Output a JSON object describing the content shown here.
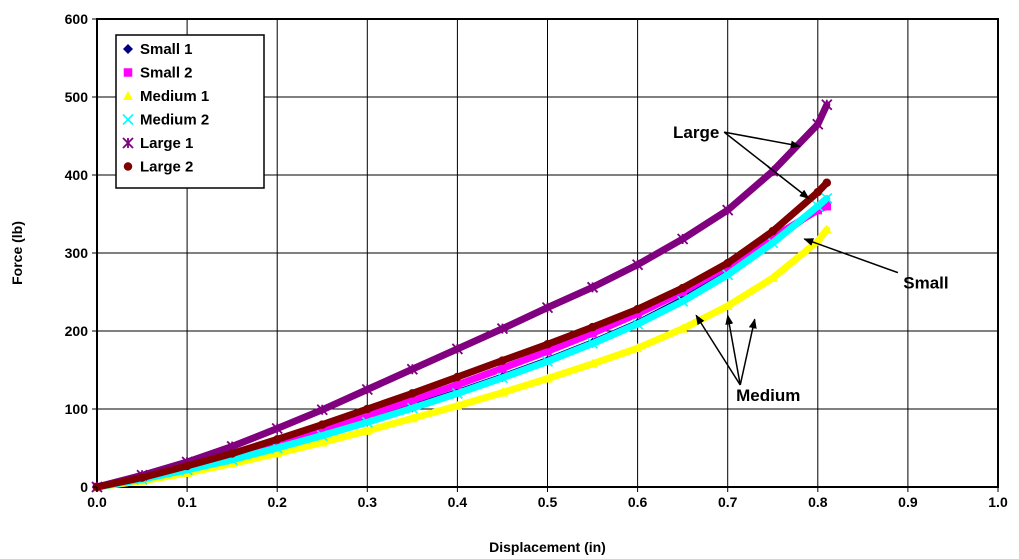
{
  "chart_data": {
    "type": "scatter",
    "xlabel": "Displacement (in)",
    "ylabel": "Force (lb)",
    "xlim": [
      0.0,
      1.0
    ],
    "ylim": [
      0,
      600
    ],
    "x_ticks": [
      "0.0",
      "0.1",
      "0.2",
      "0.3",
      "0.4",
      "0.5",
      "0.6",
      "0.7",
      "0.8",
      "0.9",
      "1.0"
    ],
    "y_ticks": [
      "0",
      "100",
      "200",
      "300",
      "400",
      "500",
      "600"
    ],
    "grid": true,
    "legend_position": "top-left",
    "series": [
      {
        "name": "Small 1",
        "color": "#000080",
        "marker": "diamond",
        "x": [
          0.0,
          0.05,
          0.1,
          0.15,
          0.2,
          0.25,
          0.3,
          0.35,
          0.4,
          0.45,
          0.5,
          0.55,
          0.6,
          0.65,
          0.7,
          0.75,
          0.8,
          0.81
        ],
        "y": [
          0,
          10,
          22,
          36,
          51,
          67,
          84,
          102,
          121,
          141,
          162,
          185,
          210,
          240,
          275,
          315,
          358,
          365
        ]
      },
      {
        "name": "Small 2",
        "color": "#ff00ff",
        "marker": "square",
        "x": [
          0.0,
          0.05,
          0.1,
          0.15,
          0.2,
          0.25,
          0.3,
          0.35,
          0.4,
          0.45,
          0.5,
          0.55,
          0.6,
          0.65,
          0.7,
          0.75,
          0.8,
          0.81
        ],
        "y": [
          0,
          12,
          26,
          41,
          57,
          74,
          92,
          111,
          131,
          152,
          174,
          197,
          222,
          250,
          283,
          320,
          355,
          360
        ]
      },
      {
        "name": "Medium 1",
        "color": "#ffff00",
        "marker": "triangle",
        "x": [
          0.0,
          0.05,
          0.1,
          0.15,
          0.2,
          0.25,
          0.3,
          0.35,
          0.4,
          0.45,
          0.5,
          0.55,
          0.6,
          0.65,
          0.7,
          0.75,
          0.8,
          0.81
        ],
        "y": [
          0,
          8,
          18,
          30,
          43,
          57,
          72,
          88,
          104,
          121,
          139,
          158,
          178,
          203,
          232,
          268,
          315,
          330
        ]
      },
      {
        "name": "Medium 2",
        "color": "#00ffff",
        "marker": "x",
        "x": [
          0.0,
          0.05,
          0.1,
          0.15,
          0.2,
          0.25,
          0.3,
          0.35,
          0.4,
          0.45,
          0.5,
          0.55,
          0.6,
          0.65,
          0.7,
          0.75,
          0.8,
          0.81
        ],
        "y": [
          0,
          10,
          22,
          35,
          50,
          66,
          83,
          101,
          120,
          140,
          161,
          184,
          209,
          238,
          272,
          313,
          360,
          370
        ]
      },
      {
        "name": "Large 1",
        "color": "#800080",
        "marker": "star",
        "x": [
          0.0,
          0.05,
          0.1,
          0.15,
          0.2,
          0.25,
          0.3,
          0.35,
          0.4,
          0.45,
          0.5,
          0.55,
          0.6,
          0.65,
          0.7,
          0.75,
          0.8,
          0.81
        ],
        "y": [
          0,
          15,
          32,
          52,
          75,
          99,
          125,
          151,
          177,
          203,
          230,
          256,
          285,
          318,
          355,
          405,
          465,
          490
        ]
      },
      {
        "name": "Large 2",
        "color": "#800000",
        "marker": "circle",
        "x": [
          0.0,
          0.05,
          0.1,
          0.15,
          0.2,
          0.25,
          0.3,
          0.35,
          0.4,
          0.45,
          0.5,
          0.55,
          0.6,
          0.65,
          0.7,
          0.75,
          0.8,
          0.81
        ],
        "y": [
          0,
          12,
          27,
          43,
          61,
          80,
          100,
          120,
          141,
          162,
          183,
          205,
          228,
          255,
          287,
          328,
          378,
          390
        ]
      }
    ],
    "annotations": [
      {
        "text": "Large",
        "anchor": [
          0.665,
          455
        ],
        "targets": [
          [
            0.78,
            437
          ],
          [
            0.79,
            370
          ]
        ]
      },
      {
        "text": "Small",
        "anchor": [
          0.92,
          262
        ],
        "targets": [
          [
            0.785,
            318
          ]
        ]
      },
      {
        "text": "Medium",
        "anchor": [
          0.745,
          118
        ],
        "targets": [
          [
            0.665,
            220
          ],
          [
            0.7,
            220
          ],
          [
            0.73,
            215
          ]
        ]
      }
    ]
  }
}
